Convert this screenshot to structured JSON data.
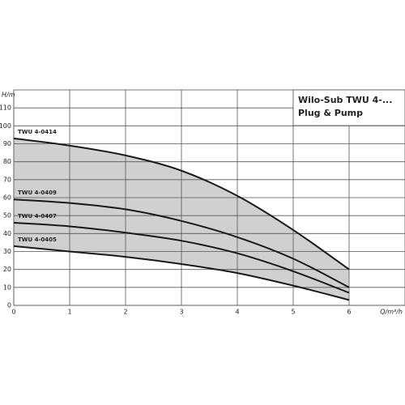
{
  "chart_data": {
    "type": "line",
    "title": [
      "Wilo-Sub TWU 4-...",
      "Plug & Pump"
    ],
    "x_label": "Q/m³/h",
    "y_label": "H/m",
    "x": [
      0,
      1,
      2,
      3,
      4,
      5,
      6
    ],
    "series": [
      {
        "name": "TWU 4-0414",
        "color": "#1a1a1a",
        "values": [
          93,
          89,
          83.5,
          75,
          61,
          42,
          20
        ]
      },
      {
        "name": "TWU 4-0409",
        "color": "#1a1a1a",
        "values": [
          59,
          57,
          53.5,
          47,
          38,
          26,
          10
        ]
      },
      {
        "name": "TWU 4-0407",
        "color": "#1a1a1a",
        "values": [
          46,
          44,
          40.5,
          36,
          29,
          19,
          7
        ]
      },
      {
        "name": "TWU 4-0405",
        "color": "#1a1a1a",
        "values": [
          33,
          30,
          27,
          23,
          18,
          11,
          3
        ]
      }
    ],
    "range_fill": "#d0d0d0",
    "xlim": [
      0,
      7
    ],
    "xticks": [
      0,
      1,
      2,
      3,
      4,
      5,
      6
    ],
    "ylim": [
      0,
      120
    ],
    "yticks": [
      0,
      10,
      20,
      30,
      40,
      50,
      60,
      70,
      80,
      90,
      100,
      110
    ],
    "grid": true
  }
}
